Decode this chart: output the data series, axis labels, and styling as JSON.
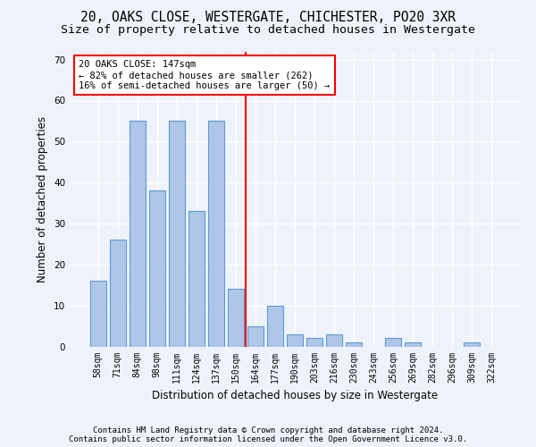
{
  "title_line1": "20, OAKS CLOSE, WESTERGATE, CHICHESTER, PO20 3XR",
  "title_line2": "Size of property relative to detached houses in Westergate",
  "xlabel": "Distribution of detached houses by size in Westergate",
  "ylabel": "Number of detached properties",
  "categories": [
    "58sqm",
    "71sqm",
    "84sqm",
    "98sqm",
    "111sqm",
    "124sqm",
    "137sqm",
    "150sqm",
    "164sqm",
    "177sqm",
    "190sqm",
    "203sqm",
    "216sqm",
    "230sqm",
    "243sqm",
    "256sqm",
    "269sqm",
    "282sqm",
    "296sqm",
    "309sqm",
    "322sqm"
  ],
  "values": [
    16,
    26,
    55,
    38,
    55,
    33,
    55,
    14,
    5,
    10,
    3,
    2,
    3,
    1,
    0,
    2,
    1,
    0,
    0,
    1,
    0
  ],
  "bar_color": "#aec6e8",
  "bar_edge_color": "#5b9bd5",
  "highlight_index": 7,
  "redline_x": 7.5,
  "ylim": [
    0,
    72
  ],
  "yticks": [
    0,
    10,
    20,
    30,
    40,
    50,
    60,
    70
  ],
  "annotation_text": "20 OAKS CLOSE: 147sqm\n← 82% of detached houses are smaller (262)\n16% of semi-detached houses are larger (50) →",
  "footer_line1": "Contains HM Land Registry data © Crown copyright and database right 2024.",
  "footer_line2": "Contains public sector information licensed under the Open Government Licence v3.0.",
  "background_color": "#eef3fb",
  "grid_color": "#ffffff",
  "title_fontsize": 10.5,
  "subtitle_fontsize": 9.5,
  "tick_fontsize": 7,
  "ylabel_fontsize": 8.5,
  "xlabel_fontsize": 8.5,
  "footer_fontsize": 6.5,
  "ann_fontsize": 7.5
}
